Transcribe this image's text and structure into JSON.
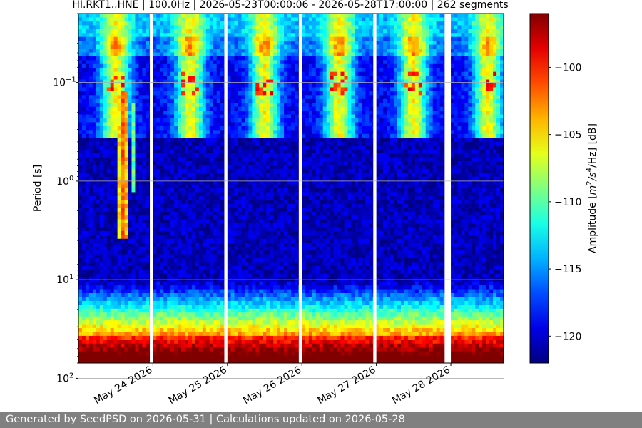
{
  "chart_data": {
    "type": "heatmap",
    "title": "HI.RKT1..HNE | 100.0Hz | 2026-05-23T00:00:06 - 2026-05-28T17:00:00 | 262 segments",
    "ylabel": "Period [s]",
    "y_scale": "log",
    "y_inverted": true,
    "ylim": [
      0.02,
      70
    ],
    "y_ticks": [
      {
        "value": 0.1,
        "base": "10",
        "exp": "−1"
      },
      {
        "value": 1,
        "base": "10",
        "exp": "0"
      },
      {
        "value": 10,
        "base": "10",
        "exp": "1"
      },
      {
        "value": 100,
        "base": "10",
        "exp": "2"
      }
    ],
    "x_start": "2026-05-23T00:00:06",
    "x_end": "2026-05-28T17:00:00",
    "x_ticks": [
      {
        "value": "2026-05-24",
        "label": "May 24 2026"
      },
      {
        "value": "2026-05-25",
        "label": "May 25 2026"
      },
      {
        "value": "2026-05-26",
        "label": "May 26 2026"
      },
      {
        "value": "2026-05-27",
        "label": "May 27 2026"
      },
      {
        "value": "2026-05-28",
        "label": "May 28 2026"
      }
    ],
    "data_gaps": [
      [
        "2026-05-23T23:00",
        "2026-05-24T00:00"
      ],
      [
        "2026-05-24T23:00",
        "2026-05-25T00:00"
      ],
      [
        "2026-05-25T23:00",
        "2026-05-26T00:00"
      ],
      [
        "2026-05-26T23:00",
        "2026-05-27T00:00"
      ],
      [
        "2026-05-27T22:00",
        "2026-05-28T00:00"
      ]
    ],
    "colorbar": {
      "label": "Amplitude [m²/s⁴/Hz] [dB]",
      "label_prefix": "Amplitude [",
      "label_m": "m",
      "label_m_exp": "2",
      "label_s": "/s",
      "label_s_exp": "4",
      "label_suffix": "/Hz] [dB]",
      "range": [
        -122,
        -96
      ],
      "ticks": [
        {
          "value": -100,
          "label": "−100"
        },
        {
          "value": -105,
          "label": "−105"
        },
        {
          "value": -110,
          "label": "−110"
        },
        {
          "value": -115,
          "label": "−115"
        },
        {
          "value": -120,
          "label": "−120"
        }
      ],
      "colormap": "jet"
    }
  },
  "footer": {
    "text": "Generated by SeedPSD on 2026-05-31 | Calculations updated on 2026-05-28"
  }
}
